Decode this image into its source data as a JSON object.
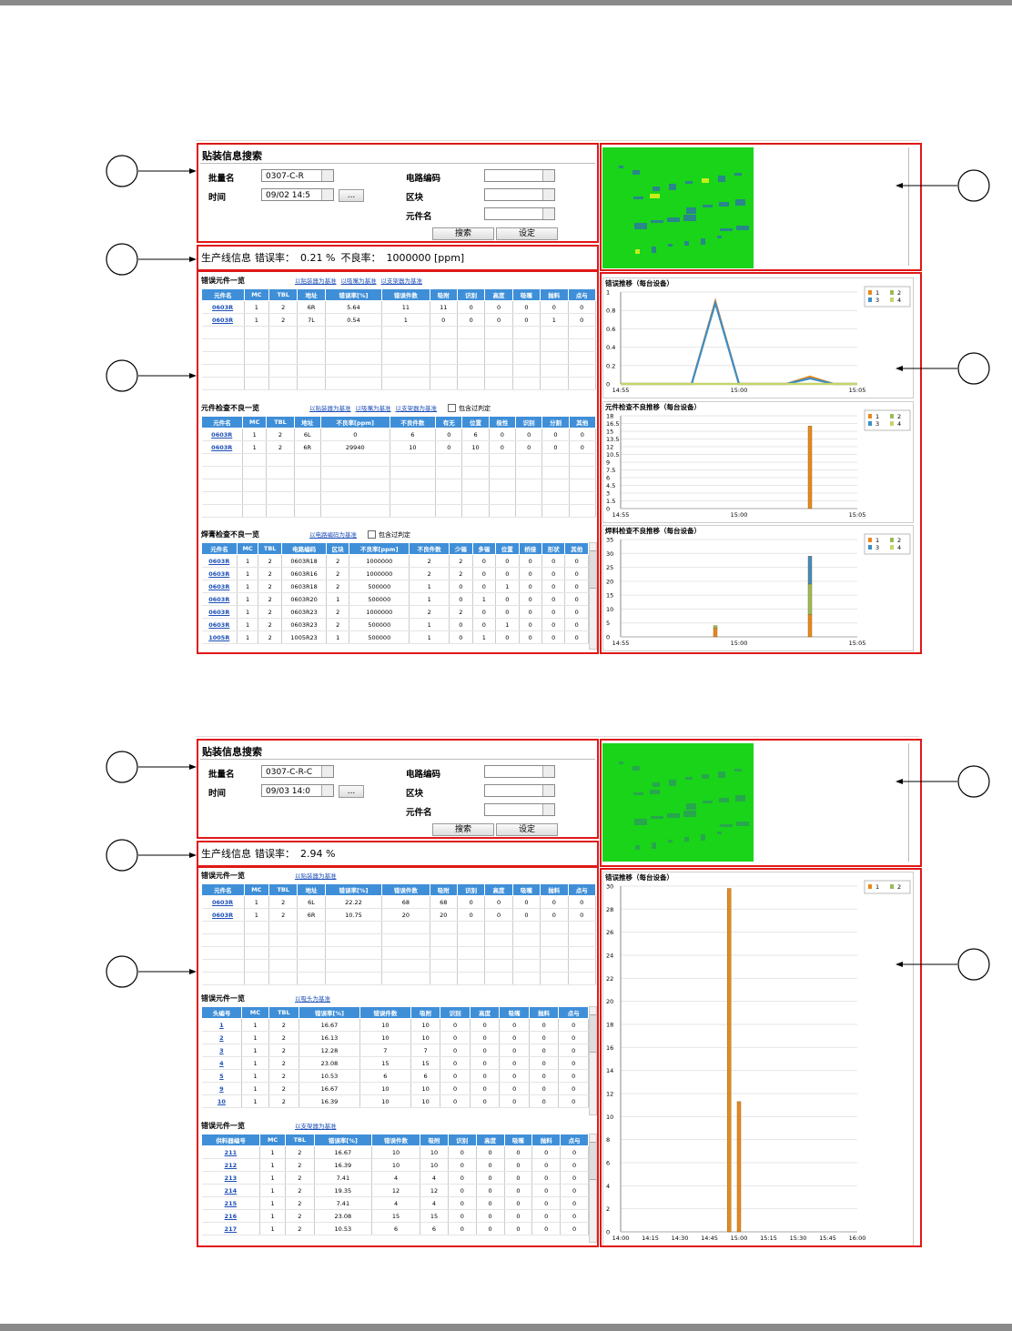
{
  "screens": [
    {
      "search": {
        "title": "贴装信息搜索",
        "lot_label": "批量名",
        "lot": "0307-C-R",
        "time_label": "时间",
        "time": "09/02 14:5",
        "more": "...",
        "circuit_label": "电路编码",
        "block_label": "区块",
        "part_label": "元件名",
        "search_button": "搜索",
        "settings_button": "设定"
      },
      "line_info": {
        "label": "生产线信息",
        "error_rate_label": "错误率：",
        "error_rate": "0.21 %",
        "defect_label": "不良率：",
        "defect_rate": "1000000 [ppm]"
      },
      "tables": [
        {
          "title": "错误元件一览",
          "links": [
            "以贴装器为基准",
            "以吸嘴为基准",
            "以支架器为基准"
          ],
          "header": [
            "元件名",
            "MC",
            "TBL",
            "地址",
            "错误率[%]",
            "错误件数",
            "吸附",
            "识别",
            "高度",
            "吸嘴",
            "抛料",
            "点与"
          ],
          "rows": [
            [
              "0603R",
              "1",
              "2",
              "6R",
              "5.64",
              "11",
              "11",
              "0",
              "0",
              "0",
              "0",
              "0"
            ],
            [
              "0603R",
              "1",
              "2",
              "7L",
              "0.54",
              "1",
              "0",
              "0",
              "0",
              "0",
              "1",
              "0"
            ]
          ]
        },
        {
          "title": "元件检查不良一览",
          "links": [
            "以贴装器为基准",
            "以吸嘴为基准",
            "以支架器为基准"
          ],
          "checkbox": "包含过判定",
          "header": [
            "元件名",
            "MC",
            "TBL",
            "地址",
            "不良率[ppm]",
            "不良件数",
            "有无",
            "位置",
            "极性",
            "识别",
            "分割",
            "其他"
          ],
          "rows": [
            [
              "0603R",
              "1",
              "2",
              "6L",
              "0",
              "6",
              "0",
              "6",
              "0",
              "0",
              "0",
              "0"
            ],
            [
              "0603R",
              "1",
              "2",
              "6R",
              "29940",
              "10",
              "0",
              "10",
              "0",
              "0",
              "0",
              "0"
            ]
          ]
        },
        {
          "title": "焊膏检查不良一览",
          "links": [
            "以电路编码为基准"
          ],
          "checkbox": "包含过判定",
          "header": [
            "元件名",
            "MC",
            "TBL",
            "电路编码",
            "区块",
            "不良率[ppm]",
            "不良件数",
            "少锡",
            "多锡",
            "位置",
            "桥接",
            "形状",
            "其他"
          ],
          "rows": [
            [
              "0603R",
              "1",
              "2",
              "0603R18",
              "2",
              "1000000",
              "2",
              "2",
              "0",
              "0",
              "0",
              "0",
              "0"
            ],
            [
              "0603R",
              "1",
              "2",
              "0603R16",
              "2",
              "1000000",
              "2",
              "2",
              "0",
              "0",
              "0",
              "0",
              "0"
            ],
            [
              "0603R",
              "1",
              "2",
              "0603R18",
              "2",
              "500000",
              "1",
              "0",
              "0",
              "1",
              "0",
              "0",
              "0"
            ],
            [
              "0603R",
              "1",
              "2",
              "0603R20",
              "1",
              "500000",
              "1",
              "0",
              "1",
              "0",
              "0",
              "0",
              "0"
            ],
            [
              "0603R",
              "1",
              "2",
              "0603R23",
              "2",
              "1000000",
              "2",
              "2",
              "0",
              "0",
              "0",
              "0",
              "0"
            ],
            [
              "0603R",
              "1",
              "2",
              "0603R23",
              "2",
              "500000",
              "1",
              "0",
              "0",
              "1",
              "0",
              "0",
              "0"
            ],
            [
              "1005R",
              "1",
              "2",
              "1005R23",
              "1",
              "500000",
              "1",
              "0",
              "1",
              "0",
              "0",
              "0",
              "0"
            ]
          ]
        }
      ],
      "charts": [
        {
          "type": "line",
          "title": "错误推移（每台设备）",
          "categories": [
            "14:55",
            null,
            null,
            null,
            null,
            "15:00",
            null,
            null,
            null,
            null,
            "15:05"
          ],
          "ylim": [
            0,
            1
          ],
          "yticks": [
            0,
            0.2,
            0.4,
            0.6,
            0.8,
            1
          ],
          "grid": true,
          "series": [
            {
              "name": "1",
              "color": "#e8891c",
              "values": [
                0,
                0,
                0,
                0,
                0.9,
                0,
                0,
                0,
                0.08,
                0,
                0
              ]
            },
            {
              "name": "2",
              "color": "#9bbb59",
              "values": [
                0,
                0,
                0,
                0,
                0,
                0,
                0,
                0,
                0,
                0,
                0
              ]
            },
            {
              "name": "3",
              "color": "#3c8dc5",
              "values": [
                0,
                0,
                0,
                0,
                0.88,
                0,
                0,
                0,
                0.06,
                0,
                0
              ]
            },
            {
              "name": "4",
              "color": "#c8d46a",
              "values": [
                0,
                0,
                0,
                0,
                0,
                0,
                0,
                0,
                0,
                0,
                0
              ]
            }
          ]
        },
        {
          "type": "bar",
          "title": "元件检查不良推移（每台设备）",
          "categories": [
            "14:55",
            null,
            null,
            null,
            null,
            "15:00",
            null,
            null,
            null,
            null,
            "15:05"
          ],
          "ylim": [
            0,
            18
          ],
          "yticks": [
            0,
            1.5,
            3,
            4.5,
            6,
            7.5,
            9,
            10.5,
            12,
            13.5,
            15,
            16.5,
            18
          ],
          "grid": true,
          "series": [
            {
              "name": "1",
              "color": "#e8891c",
              "values": [
                0,
                0,
                0,
                0,
                0,
                0,
                0,
                0,
                16,
                0,
                0
              ]
            },
            {
              "name": "2",
              "color": "#9bbb59",
              "values": [
                0,
                0,
                0,
                0,
                0,
                0,
                0,
                0,
                0,
                0,
                0
              ]
            },
            {
              "name": "3",
              "color": "#3c8dc5",
              "values": [
                0,
                0,
                0,
                0,
                0,
                0,
                0,
                0,
                0,
                0,
                0
              ]
            },
            {
              "name": "4",
              "color": "#c8d46a",
              "values": [
                0,
                0,
                0,
                0,
                0,
                0,
                0,
                0,
                0,
                0,
                0
              ]
            }
          ]
        },
        {
          "type": "bar",
          "title": "焊料检查不良推移（每台设备）",
          "categories": [
            "14:55",
            null,
            null,
            null,
            null,
            "15:00",
            null,
            null,
            null,
            null,
            "15:05"
          ],
          "ylim": [
            0,
            35
          ],
          "yticks": [
            0,
            5,
            10,
            15,
            20,
            25,
            30,
            35
          ],
          "grid": true,
          "series": [
            {
              "name": "1",
              "color": "#e8891c",
              "values": [
                0,
                0,
                0,
                0,
                3,
                0,
                0,
                0,
                8,
                0,
                0
              ]
            },
            {
              "name": "2",
              "color": "#9bbb59",
              "values": [
                0,
                0,
                0,
                0,
                1,
                0,
                0,
                0,
                11,
                0,
                0
              ]
            },
            {
              "name": "3",
              "color": "#3c8dc5",
              "values": [
                0,
                0,
                0,
                0,
                0,
                0,
                0,
                0,
                10,
                0,
                0
              ]
            },
            {
              "name": "4",
              "color": "#c8d46a",
              "values": [
                0,
                0,
                0,
                0,
                0,
                0,
                0,
                0,
                0,
                0,
                0
              ]
            }
          ]
        }
      ]
    },
    {
      "search": {
        "title": "贴装信息搜索",
        "lot_label": "批量名",
        "lot": "0307-C-R-C",
        "time_label": "时间",
        "time": "09/03 14:0",
        "more": "...",
        "circuit_label": "电路编码",
        "block_label": "区块",
        "part_label": "元件名",
        "search_button": "搜索",
        "settings_button": "设定"
      },
      "line_info": {
        "label": "生产线信息",
        "error_rate_label": "错误率：",
        "error_rate": "2.94 %"
      },
      "tables": [
        {
          "title": "错误元件一览",
          "links": [
            "以贴装器为基准"
          ],
          "header": [
            "元件名",
            "MC",
            "TBL",
            "地址",
            "错误率[%]",
            "错误件数",
            "吸附",
            "识别",
            "高度",
            "吸嘴",
            "抛料",
            "点与"
          ],
          "rows": [
            [
              "0603R",
              "1",
              "2",
              "6L",
              "22.22",
              "68",
              "68",
              "0",
              "0",
              "0",
              "0",
              "0"
            ],
            [
              "0603R",
              "1",
              "2",
              "6R",
              "10.75",
              "20",
              "20",
              "0",
              "0",
              "0",
              "0",
              "0"
            ]
          ]
        },
        {
          "title": "错误元件一览",
          "links": [
            "以吸头为基准"
          ],
          "header": [
            "头编号",
            "MC",
            "TBL",
            "错误率[%]",
            "错误件数",
            "吸附",
            "识别",
            "高度",
            "吸嘴",
            "抛料",
            "点与"
          ],
          "rows": [
            [
              "1",
              "1",
              "2",
              "16.67",
              "10",
              "10",
              "0",
              "0",
              "0",
              "0",
              "0"
            ],
            [
              "2",
              "1",
              "2",
              "16.13",
              "10",
              "10",
              "0",
              "0",
              "0",
              "0",
              "0"
            ],
            [
              "3",
              "1",
              "2",
              "12.28",
              "7",
              "7",
              "0",
              "0",
              "0",
              "0",
              "0"
            ],
            [
              "4",
              "1",
              "2",
              "23.08",
              "15",
              "15",
              "0",
              "0",
              "0",
              "0",
              "0"
            ],
            [
              "5",
              "1",
              "2",
              "10.53",
              "6",
              "6",
              "0",
              "0",
              "0",
              "0",
              "0"
            ],
            [
              "9",
              "1",
              "2",
              "16.67",
              "10",
              "10",
              "0",
              "0",
              "0",
              "0",
              "0"
            ],
            [
              "10",
              "1",
              "2",
              "16.39",
              "10",
              "10",
              "0",
              "0",
              "0",
              "0",
              "0"
            ]
          ]
        },
        {
          "title": "错误元件一览",
          "links": [
            "以支架器为基准"
          ],
          "header": [
            "供料器编号",
            "MC",
            "TBL",
            "错误率[%]",
            "错误件数",
            "吸附",
            "识别",
            "高度",
            "吸嘴",
            "抛料",
            "点与"
          ],
          "rows": [
            [
              "211",
              "1",
              "2",
              "16.67",
              "10",
              "10",
              "0",
              "0",
              "0",
              "0",
              "0"
            ],
            [
              "212",
              "1",
              "2",
              "16.39",
              "10",
              "10",
              "0",
              "0",
              "0",
              "0",
              "0"
            ],
            [
              "213",
              "1",
              "2",
              "7.41",
              "4",
              "4",
              "0",
              "0",
              "0",
              "0",
              "0"
            ],
            [
              "214",
              "1",
              "2",
              "19.35",
              "12",
              "12",
              "0",
              "0",
              "0",
              "0",
              "0"
            ],
            [
              "215",
              "1",
              "2",
              "7.41",
              "4",
              "4",
              "0",
              "0",
              "0",
              "0",
              "0"
            ],
            [
              "216",
              "1",
              "2",
              "23.08",
              "15",
              "15",
              "0",
              "0",
              "0",
              "0",
              "0"
            ],
            [
              "217",
              "1",
              "2",
              "10.53",
              "6",
              "6",
              "0",
              "0",
              "0",
              "0",
              "0"
            ]
          ]
        }
      ],
      "charts": [
        {
          "type": "bar",
          "title": "错误推移（每台设备）",
          "categories": [
            "14:00",
            null,
            null,
            "14:15",
            null,
            null,
            "14:30",
            null,
            null,
            "14:45",
            null,
            null,
            "15:00",
            null,
            null,
            "15:15",
            null,
            null,
            "15:30",
            null,
            null,
            "15:45",
            null,
            null,
            "16:00"
          ],
          "ylim": [
            0,
            30
          ],
          "yticks": [
            0,
            2,
            4,
            6,
            8,
            10,
            12,
            14,
            16,
            18,
            20,
            22,
            24,
            26,
            28,
            30
          ],
          "grid": true,
          "series": [
            {
              "name": "1",
              "color": "#e8891c",
              "values": [
                0,
                0,
                0,
                0,
                0,
                0,
                0,
                0,
                0,
                0,
                0,
                29.8,
                11.3,
                0,
                0,
                0,
                0,
                0,
                0,
                0,
                0,
                0,
                0,
                0,
                0
              ]
            },
            {
              "name": "2",
              "color": "#9bbb59",
              "values": [
                0,
                0,
                0,
                0,
                0,
                0,
                0,
                0,
                0,
                0,
                0,
                0,
                0,
                0,
                0,
                0,
                0,
                0,
                0,
                0,
                0,
                0,
                0,
                0,
                0
              ]
            }
          ]
        }
      ]
    }
  ]
}
